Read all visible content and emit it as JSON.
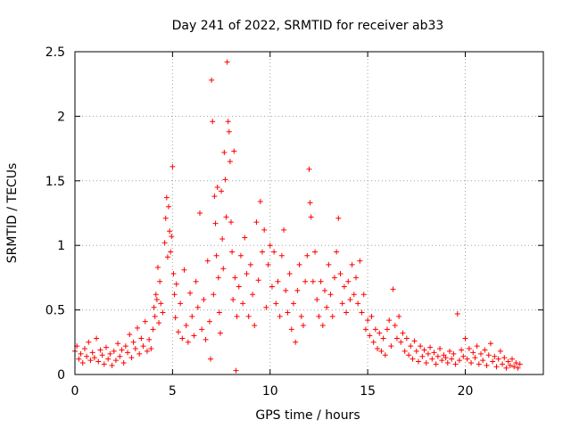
{
  "chart_data": {
    "type": "scatter",
    "title": "Day 241 of 2022, SRMTID for receiver ab33",
    "xlabel": "GPS time / hours",
    "ylabel": "SRMTID / TECUs",
    "xlim": [
      0,
      24
    ],
    "ylim": [
      0,
      2.5
    ],
    "xticks": [
      0,
      5,
      10,
      15,
      20
    ],
    "xtick_labels": [
      "0",
      "5",
      "10",
      "15",
      "20"
    ],
    "yticks": [
      0,
      0.5,
      1,
      1.5,
      2,
      2.5
    ],
    "ytick_labels": [
      "0",
      "0.5",
      "1",
      "1.5",
      "2",
      "2.5"
    ],
    "grid": true,
    "marker": "+",
    "color": "#ff0000",
    "series": [
      {
        "name": "ab33",
        "points": [
          [
            0.0,
            0.18
          ],
          [
            0.1,
            0.22
          ],
          [
            0.2,
            0.12
          ],
          [
            0.3,
            0.16
          ],
          [
            0.4,
            0.09
          ],
          [
            0.5,
            0.2
          ],
          [
            0.6,
            0.14
          ],
          [
            0.7,
            0.25
          ],
          [
            0.8,
            0.11
          ],
          [
            0.9,
            0.17
          ],
          [
            1.0,
            0.13
          ],
          [
            1.1,
            0.28
          ],
          [
            1.2,
            0.1
          ],
          [
            1.3,
            0.19
          ],
          [
            1.4,
            0.15
          ],
          [
            1.5,
            0.08
          ],
          [
            1.6,
            0.21
          ],
          [
            1.7,
            0.12
          ],
          [
            1.8,
            0.16
          ],
          [
            1.9,
            0.07
          ],
          [
            2.0,
            0.18
          ],
          [
            2.1,
            0.11
          ],
          [
            2.2,
            0.24
          ],
          [
            2.3,
            0.14
          ],
          [
            2.4,
            0.19
          ],
          [
            2.5,
            0.09
          ],
          [
            2.6,
            0.22
          ],
          [
            2.7,
            0.17
          ],
          [
            2.8,
            0.31
          ],
          [
            2.9,
            0.13
          ],
          [
            3.0,
            0.25
          ],
          [
            3.1,
            0.2
          ],
          [
            3.2,
            0.36
          ],
          [
            3.3,
            0.16
          ],
          [
            3.4,
            0.28
          ],
          [
            3.5,
            0.22
          ],
          [
            3.6,
            0.41
          ],
          [
            3.7,
            0.18
          ],
          [
            3.8,
            0.27
          ],
          [
            3.9,
            0.2
          ],
          [
            4.0,
            0.35
          ],
          [
            4.05,
            0.52
          ],
          [
            4.1,
            0.45
          ],
          [
            4.15,
            0.62
          ],
          [
            4.2,
            0.58
          ],
          [
            4.25,
            0.83
          ],
          [
            4.3,
            0.4
          ],
          [
            4.35,
            0.72
          ],
          [
            4.4,
            0.55
          ],
          [
            4.5,
            0.48
          ],
          [
            4.6,
            1.02
          ],
          [
            4.65,
            1.21
          ],
          [
            4.7,
            1.37
          ],
          [
            4.75,
            0.91
          ],
          [
            4.8,
            1.3
          ],
          [
            4.85,
            1.11
          ],
          [
            4.9,
            0.95
          ],
          [
            4.95,
            1.07
          ],
          [
            5.0,
            1.61
          ],
          [
            5.05,
            0.78
          ],
          [
            5.1,
            0.62
          ],
          [
            5.15,
            0.44
          ],
          [
            5.2,
            0.7
          ],
          [
            5.3,
            0.33
          ],
          [
            5.4,
            0.55
          ],
          [
            5.5,
            0.28
          ],
          [
            5.6,
            0.81
          ],
          [
            5.7,
            0.38
          ],
          [
            5.8,
            0.25
          ],
          [
            5.9,
            0.63
          ],
          [
            6.0,
            0.45
          ],
          [
            6.1,
            0.3
          ],
          [
            6.2,
            0.72
          ],
          [
            6.3,
            0.52
          ],
          [
            6.4,
            1.25
          ],
          [
            6.5,
            0.35
          ],
          [
            6.6,
            0.58
          ],
          [
            6.7,
            0.27
          ],
          [
            6.8,
            0.88
          ],
          [
            6.9,
            0.41
          ],
          [
            6.95,
            0.12
          ],
          [
            7.0,
            2.28
          ],
          [
            7.05,
            1.96
          ],
          [
            7.1,
            0.62
          ],
          [
            7.15,
            1.38
          ],
          [
            7.2,
            1.17
          ],
          [
            7.25,
            0.92
          ],
          [
            7.3,
            1.45
          ],
          [
            7.35,
            0.75
          ],
          [
            7.4,
            0.48
          ],
          [
            7.45,
            0.32
          ],
          [
            7.5,
            1.42
          ],
          [
            7.55,
            1.05
          ],
          [
            7.6,
            0.82
          ],
          [
            7.65,
            1.72
          ],
          [
            7.7,
            1.51
          ],
          [
            7.75,
            1.22
          ],
          [
            7.8,
            2.42
          ],
          [
            7.85,
            1.96
          ],
          [
            7.9,
            1.88
          ],
          [
            7.95,
            1.65
          ],
          [
            8.0,
            1.18
          ],
          [
            8.05,
            0.95
          ],
          [
            8.1,
            0.58
          ],
          [
            8.15,
            1.73
          ],
          [
            8.2,
            0.75
          ],
          [
            8.25,
            0.03
          ],
          [
            8.3,
            0.45
          ],
          [
            8.4,
            0.68
          ],
          [
            8.5,
            0.92
          ],
          [
            8.6,
            0.55
          ],
          [
            8.7,
            1.06
          ],
          [
            8.8,
            0.78
          ],
          [
            8.9,
            0.45
          ],
          [
            9.0,
            0.85
          ],
          [
            9.1,
            0.62
          ],
          [
            9.2,
            0.38
          ],
          [
            9.3,
            1.18
          ],
          [
            9.4,
            0.73
          ],
          [
            9.5,
            1.34
          ],
          [
            9.6,
            0.95
          ],
          [
            9.7,
            1.12
          ],
          [
            9.8,
            0.52
          ],
          [
            9.9,
            0.85
          ],
          [
            10.0,
            1.0
          ],
          [
            10.1,
            0.68
          ],
          [
            10.2,
            0.95
          ],
          [
            10.3,
            0.55
          ],
          [
            10.4,
            0.72
          ],
          [
            10.5,
            0.45
          ],
          [
            10.6,
            0.92
          ],
          [
            10.7,
            1.12
          ],
          [
            10.8,
            0.65
          ],
          [
            10.9,
            0.48
          ],
          [
            11.0,
            0.78
          ],
          [
            11.1,
            0.35
          ],
          [
            11.2,
            0.55
          ],
          [
            11.3,
            0.25
          ],
          [
            11.4,
            0.65
          ],
          [
            11.5,
            0.85
          ],
          [
            11.6,
            0.45
          ],
          [
            11.7,
            0.38
          ],
          [
            11.8,
            0.72
          ],
          [
            11.9,
            0.92
          ],
          [
            12.0,
            1.59
          ],
          [
            12.05,
            1.33
          ],
          [
            12.1,
            1.22
          ],
          [
            12.2,
            0.72
          ],
          [
            12.3,
            0.95
          ],
          [
            12.4,
            0.58
          ],
          [
            12.5,
            0.45
          ],
          [
            12.6,
            0.72
          ],
          [
            12.7,
            0.38
          ],
          [
            12.8,
            0.65
          ],
          [
            12.9,
            0.52
          ],
          [
            13.0,
            0.85
          ],
          [
            13.1,
            0.62
          ],
          [
            13.2,
            0.45
          ],
          [
            13.3,
            0.75
          ],
          [
            13.4,
            0.95
          ],
          [
            13.5,
            1.21
          ],
          [
            13.6,
            0.78
          ],
          [
            13.7,
            0.55
          ],
          [
            13.8,
            0.68
          ],
          [
            13.9,
            0.48
          ],
          [
            14.0,
            0.72
          ],
          [
            14.1,
            0.58
          ],
          [
            14.2,
            0.85
          ],
          [
            14.3,
            0.62
          ],
          [
            14.4,
            0.75
          ],
          [
            14.5,
            0.55
          ],
          [
            14.6,
            0.88
          ],
          [
            14.7,
            0.48
          ],
          [
            14.8,
            0.62
          ],
          [
            14.9,
            0.35
          ],
          [
            15.0,
            0.42
          ],
          [
            15.1,
            0.3
          ],
          [
            15.2,
            0.45
          ],
          [
            15.3,
            0.25
          ],
          [
            15.4,
            0.35
          ],
          [
            15.5,
            0.2
          ],
          [
            15.6,
            0.32
          ],
          [
            15.7,
            0.18
          ],
          [
            15.8,
            0.28
          ],
          [
            15.9,
            0.15
          ],
          [
            16.0,
            0.35
          ],
          [
            16.1,
            0.42
          ],
          [
            16.2,
            0.22
          ],
          [
            16.3,
            0.66
          ],
          [
            16.4,
            0.38
          ],
          [
            16.5,
            0.28
          ],
          [
            16.6,
            0.45
          ],
          [
            16.7,
            0.25
          ],
          [
            16.8,
            0.32
          ],
          [
            16.9,
            0.18
          ],
          [
            17.0,
            0.28
          ],
          [
            17.1,
            0.15
          ],
          [
            17.2,
            0.22
          ],
          [
            17.3,
            0.12
          ],
          [
            17.4,
            0.26
          ],
          [
            17.5,
            0.18
          ],
          [
            17.6,
            0.1
          ],
          [
            17.7,
            0.22
          ],
          [
            17.8,
            0.14
          ],
          [
            17.9,
            0.19
          ],
          [
            18.0,
            0.09
          ],
          [
            18.1,
            0.16
          ],
          [
            18.2,
            0.21
          ],
          [
            18.3,
            0.12
          ],
          [
            18.4,
            0.17
          ],
          [
            18.5,
            0.08
          ],
          [
            18.6,
            0.14
          ],
          [
            18.7,
            0.2
          ],
          [
            18.8,
            0.11
          ],
          [
            18.9,
            0.15
          ],
          [
            19.0,
            0.13
          ],
          [
            19.1,
            0.09
          ],
          [
            19.2,
            0.18
          ],
          [
            19.3,
            0.12
          ],
          [
            19.4,
            0.16
          ],
          [
            19.5,
            0.08
          ],
          [
            19.6,
            0.47
          ],
          [
            19.7,
            0.11
          ],
          [
            19.8,
            0.19
          ],
          [
            19.9,
            0.14
          ],
          [
            20.0,
            0.28
          ],
          [
            20.1,
            0.12
          ],
          [
            20.2,
            0.2
          ],
          [
            20.3,
            0.09
          ],
          [
            20.4,
            0.17
          ],
          [
            20.5,
            0.13
          ],
          [
            20.6,
            0.22
          ],
          [
            20.7,
            0.08
          ],
          [
            20.8,
            0.16
          ],
          [
            20.9,
            0.11
          ],
          [
            21.0,
            0.19
          ],
          [
            21.1,
            0.07
          ],
          [
            21.2,
            0.15
          ],
          [
            21.3,
            0.24
          ],
          [
            21.4,
            0.1
          ],
          [
            21.5,
            0.14
          ],
          [
            21.6,
            0.06
          ],
          [
            21.7,
            0.12
          ],
          [
            21.8,
            0.18
          ],
          [
            21.9,
            0.08
          ],
          [
            22.0,
            0.13
          ],
          [
            22.1,
            0.05
          ],
          [
            22.2,
            0.1
          ],
          [
            22.3,
            0.07
          ],
          [
            22.4,
            0.12
          ],
          [
            22.5,
            0.06
          ],
          [
            22.6,
            0.09
          ],
          [
            22.7,
            0.05
          ],
          [
            22.8,
            0.08
          ]
        ]
      }
    ]
  }
}
